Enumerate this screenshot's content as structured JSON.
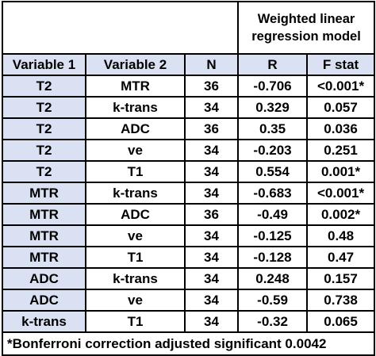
{
  "top_header": {
    "model_line1": "Weighted linear",
    "model_line2": "regression model"
  },
  "columns": [
    "Variable 1",
    "Variable 2",
    "N",
    "R",
    "F stat"
  ],
  "rows": [
    {
      "v1": "T2",
      "v2": "MTR",
      "n": "36",
      "r": "-0.706",
      "f": "<0.001*"
    },
    {
      "v1": "T2",
      "v2": "k-trans",
      "n": "34",
      "r": "0.329",
      "f": "0.057"
    },
    {
      "v1": "T2",
      "v2": "ADC",
      "n": "36",
      "r": "0.35",
      "f": "0.036"
    },
    {
      "v1": "T2",
      "v2": "ve",
      "n": "34",
      "r": "-0.203",
      "f": "0.251"
    },
    {
      "v1": "T2",
      "v2": "T1",
      "n": "34",
      "r": "0.554",
      "f": "0.001*"
    },
    {
      "v1": "MTR",
      "v2": "k-trans",
      "n": "34",
      "r": "-0.683",
      "f": "<0.001*"
    },
    {
      "v1": "MTR",
      "v2": "ADC",
      "n": "36",
      "r": "-0.49",
      "f": "0.002*"
    },
    {
      "v1": "MTR",
      "v2": "ve",
      "n": "34",
      "r": "-0.125",
      "f": "0.48"
    },
    {
      "v1": "MTR",
      "v2": "T1",
      "n": "34",
      "r": "-0.128",
      "f": "0.47"
    },
    {
      "v1": "ADC",
      "v2": "k-trans",
      "n": "34",
      "r": "0.248",
      "f": "0.157"
    },
    {
      "v1": "ADC",
      "v2": "ve",
      "n": "34",
      "r": "-0.59",
      "f": "0.738"
    },
    {
      "v1": "k-trans",
      "v2": "T1",
      "n": "34",
      "r": "-0.32",
      "f": "0.065"
    }
  ],
  "footnote": "*Bonferroni correction adjusted significant 0.0042",
  "colors": {
    "header_fill": "#d9e1f2",
    "border": "#000000"
  }
}
